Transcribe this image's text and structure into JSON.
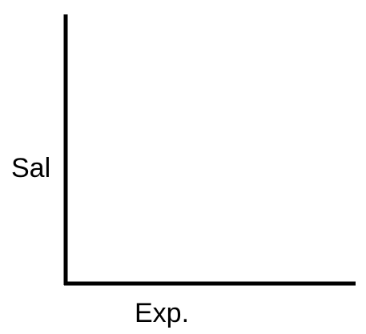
{
  "chart_data": {
    "type": "line",
    "title": "",
    "xlabel": "Exp.",
    "ylabel": "Sal",
    "series": [],
    "grid": false,
    "legend": "none",
    "colors": {
      "axis": "#000000",
      "label": "#000000",
      "background": "#ffffff"
    }
  }
}
